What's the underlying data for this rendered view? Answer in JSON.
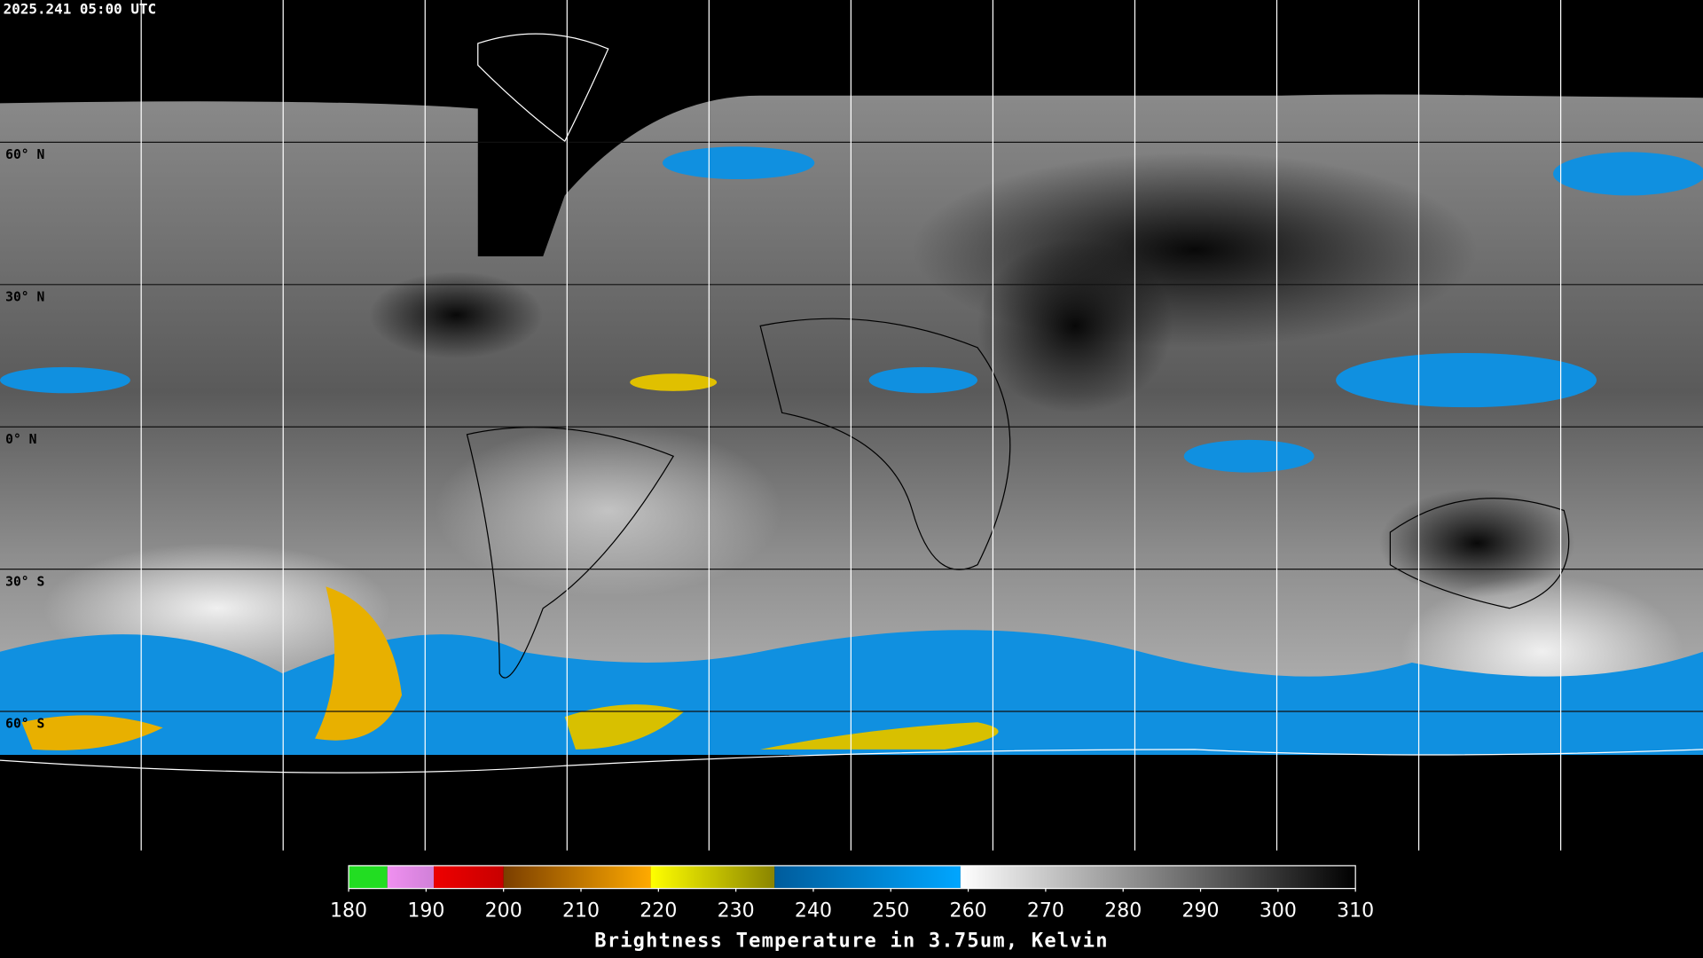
{
  "header": {
    "timestamp": "2025.241 05:00 UTC"
  },
  "map": {
    "latitude_labels": [
      "60° N",
      "30° N",
      "0° N",
      "30° S",
      "60° S"
    ]
  },
  "colorbar": {
    "title": "Brightness Temperature in 3.75um, Kelvin",
    "lim": [
      180,
      310
    ],
    "ticks": [
      180,
      190,
      200,
      210,
      220,
      230,
      240,
      250,
      260,
      270,
      280,
      290,
      300,
      310
    ],
    "segments": [
      {
        "from": 180,
        "to": 185,
        "colors": [
          "#22dd22",
          "#22dd22"
        ]
      },
      {
        "from": 185,
        "to": 191,
        "colors": [
          "#f090f0",
          "#d080d8"
        ]
      },
      {
        "from": 191,
        "to": 200,
        "colors": [
          "#ee0000",
          "#c80000"
        ]
      },
      {
        "from": 200,
        "to": 219,
        "colors": [
          "#7a3e00",
          "#ffaa00"
        ]
      },
      {
        "from": 219,
        "to": 235,
        "colors": [
          "#ffff00",
          "#8a8400"
        ]
      },
      {
        "from": 235,
        "to": 259,
        "colors": [
          "#005c9c",
          "#00a6ff"
        ]
      },
      {
        "from": 259,
        "to": 310,
        "colors": [
          "#ffffff",
          "#000000"
        ]
      }
    ]
  }
}
